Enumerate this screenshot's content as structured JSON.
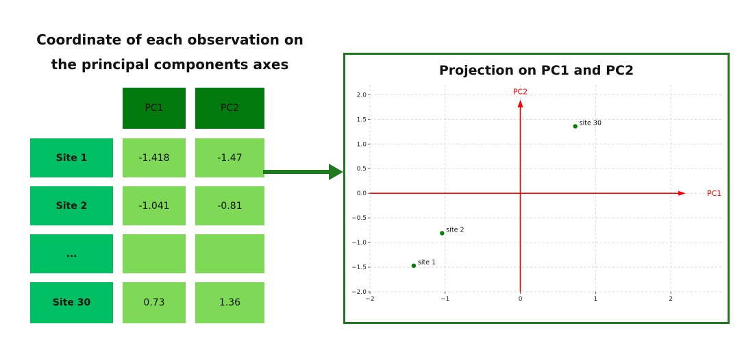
{
  "table": {
    "title_line1": "Coordinate of each observation on",
    "title_line2": "the principal components axes",
    "headers": [
      "PC1",
      "PC2"
    ],
    "rows": [
      {
        "label": "Site 1",
        "pc1": "-1.418",
        "pc2": "-1.47"
      },
      {
        "label": "Site 2",
        "pc1": "-1.041",
        "pc2": "-0.81"
      },
      {
        "label": "...",
        "pc1": "",
        "pc2": ""
      },
      {
        "label": "Site 30",
        "pc1": "0.73",
        "pc2": "1.36"
      }
    ],
    "colors": {
      "header": "#037a0e",
      "label": "#00bf63",
      "value": "#7ed957"
    }
  },
  "connector": {
    "color": "#1d7a1d",
    "icon": "right-arrow-icon"
  },
  "chart_data": {
    "type": "scatter",
    "title": "Projection on PC1 and PC2",
    "xlabel": "PC1",
    "ylabel": "PC2",
    "xlim": [
      -2,
      2.7
    ],
    "ylim": [
      -2,
      2.2
    ],
    "xticks": [
      -2,
      -1,
      0,
      1,
      2
    ],
    "yticks": [
      -2.0,
      -1.5,
      -1.0,
      -0.5,
      0.0,
      0.5,
      1.0,
      1.5,
      2.0
    ],
    "grid": true,
    "axis_color": "#ff0000",
    "point_color": "#008000",
    "points": [
      {
        "label": "site 1",
        "x": -1.418,
        "y": -1.47
      },
      {
        "label": "site 2",
        "x": -1.041,
        "y": -0.81
      },
      {
        "label": "site 30",
        "x": 0.73,
        "y": 1.36
      }
    ]
  }
}
